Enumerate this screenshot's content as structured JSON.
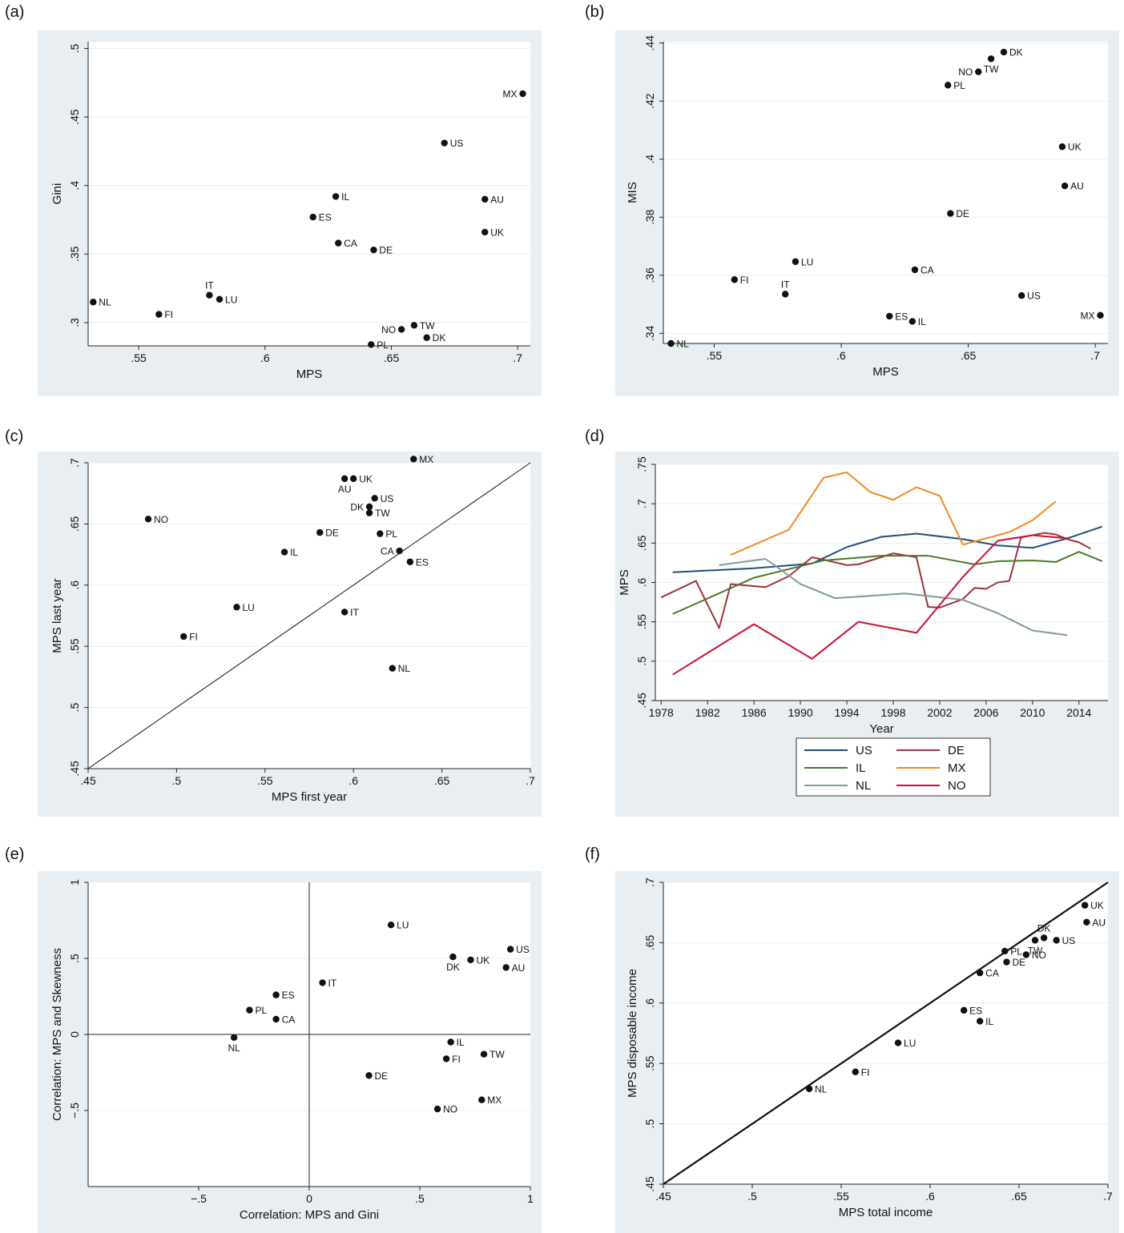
{
  "panel_tags": [
    "(a)",
    "(b)",
    "(c)",
    "(d)",
    "(e)",
    "(f)"
  ],
  "chart_data": [
    {
      "id": "a",
      "type": "scatter",
      "title": "",
      "xlabel": "MPS",
      "ylabel": "Gini",
      "xlim": [
        0.53,
        0.705
      ],
      "ylim": [
        0.283,
        0.505
      ],
      "xticks": [
        0.55,
        0.6,
        0.65,
        0.7
      ],
      "xticklabels": [
        ".55",
        ".6",
        ".65",
        ".7"
      ],
      "yticks": [
        0.3,
        0.35,
        0.4,
        0.45,
        0.5
      ],
      "yticklabels": [
        ".3",
        ".35",
        ".4",
        ".45",
        ".5"
      ],
      "grid": true,
      "points": [
        {
          "label": "NL",
          "x": 0.532,
          "y": 0.315
        },
        {
          "label": "FI",
          "x": 0.558,
          "y": 0.306
        },
        {
          "label": "IT",
          "x": 0.578,
          "y": 0.32,
          "pos": "above"
        },
        {
          "label": "LU",
          "x": 0.582,
          "y": 0.317
        },
        {
          "label": "ES",
          "x": 0.619,
          "y": 0.377
        },
        {
          "label": "IL",
          "x": 0.628,
          "y": 0.392
        },
        {
          "label": "CA",
          "x": 0.629,
          "y": 0.358
        },
        {
          "label": "DE",
          "x": 0.643,
          "y": 0.353
        },
        {
          "label": "PL",
          "x": 0.642,
          "y": 0.284
        },
        {
          "label": "NO",
          "x": 0.654,
          "y": 0.295,
          "pos": "left"
        },
        {
          "label": "TW",
          "x": 0.659,
          "y": 0.298
        },
        {
          "label": "DK",
          "x": 0.664,
          "y": 0.289
        },
        {
          "label": "US",
          "x": 0.671,
          "y": 0.431
        },
        {
          "label": "AU",
          "x": 0.687,
          "y": 0.39
        },
        {
          "label": "UK",
          "x": 0.687,
          "y": 0.366
        },
        {
          "label": "MX",
          "x": 0.702,
          "y": 0.467,
          "pos": "left"
        }
      ]
    },
    {
      "id": "b",
      "type": "scatter",
      "title": "",
      "xlabel": "MPS",
      "ylabel": "MIS",
      "xlim": [
        0.53,
        0.705
      ],
      "ylim": [
        0.3365,
        0.4405
      ],
      "xticks": [
        0.55,
        0.6,
        0.65,
        0.7
      ],
      "xticklabels": [
        ".55",
        ".6",
        ".65",
        ".7"
      ],
      "yticks": [
        0.34,
        0.36,
        0.38,
        0.4,
        0.42,
        0.44
      ],
      "yticklabels": [
        ".34",
        ".36",
        ".38",
        ".4",
        ".42",
        ".44"
      ],
      "grid": true,
      "points": [
        {
          "label": "NL",
          "x": 0.533,
          "y": 0.3365
        },
        {
          "label": "FI",
          "x": 0.558,
          "y": 0.3585
        },
        {
          "label": "IT",
          "x": 0.578,
          "y": 0.3535,
          "pos": "above"
        },
        {
          "label": "LU",
          "x": 0.582,
          "y": 0.3647
        },
        {
          "label": "ES",
          "x": 0.619,
          "y": 0.3459
        },
        {
          "label": "IL",
          "x": 0.628,
          "y": 0.3441
        },
        {
          "label": "CA",
          "x": 0.629,
          "y": 0.3619
        },
        {
          "label": "DE",
          "x": 0.643,
          "y": 0.3813
        },
        {
          "label": "PL",
          "x": 0.642,
          "y": 0.4255
        },
        {
          "label": "NO",
          "x": 0.654,
          "y": 0.4301,
          "pos": "left"
        },
        {
          "label": "TW",
          "x": 0.659,
          "y": 0.4346,
          "pos": "below"
        },
        {
          "label": "DK",
          "x": 0.664,
          "y": 0.4369
        },
        {
          "label": "US",
          "x": 0.671,
          "y": 0.353
        },
        {
          "label": "UK",
          "x": 0.687,
          "y": 0.4043
        },
        {
          "label": "AU",
          "x": 0.688,
          "y": 0.3908
        },
        {
          "label": "MX",
          "x": 0.702,
          "y": 0.3462,
          "pos": "left"
        }
      ]
    },
    {
      "id": "c",
      "type": "scatter",
      "title": "",
      "xlabel": "MPS first year",
      "ylabel": "MPS last year",
      "xlim": [
        0.45,
        0.7
      ],
      "ylim": [
        0.45,
        0.7
      ],
      "xticks": [
        0.45,
        0.5,
        0.55,
        0.6,
        0.65,
        0.7
      ],
      "xticklabels": [
        ".45",
        ".5",
        ".55",
        ".6",
        ".65",
        ".7"
      ],
      "yticks": [
        0.45,
        0.5,
        0.55,
        0.6,
        0.65,
        0.7
      ],
      "yticklabels": [
        ".45",
        ".5",
        ".55",
        ".6",
        ".65",
        ".7"
      ],
      "grid": true,
      "reference_line": {
        "from": [
          0.45,
          0.45
        ],
        "to": [
          0.7,
          0.7
        ]
      },
      "points": [
        {
          "label": "NO",
          "x": 0.484,
          "y": 0.654
        },
        {
          "label": "FI",
          "x": 0.504,
          "y": 0.558
        },
        {
          "label": "LU",
          "x": 0.534,
          "y": 0.582
        },
        {
          "label": "IL",
          "x": 0.561,
          "y": 0.627
        },
        {
          "label": "DE",
          "x": 0.581,
          "y": 0.643
        },
        {
          "label": "AU",
          "x": 0.595,
          "y": 0.687,
          "pos": "below"
        },
        {
          "label": "UK",
          "x": 0.6,
          "y": 0.687
        },
        {
          "label": "IT",
          "x": 0.595,
          "y": 0.578
        },
        {
          "label": "DK",
          "x": 0.609,
          "y": 0.664,
          "pos": "left"
        },
        {
          "label": "US",
          "x": 0.612,
          "y": 0.671
        },
        {
          "label": "TW",
          "x": 0.609,
          "y": 0.659
        },
        {
          "label": "PL",
          "x": 0.615,
          "y": 0.642
        },
        {
          "label": "NL",
          "x": 0.622,
          "y": 0.532
        },
        {
          "label": "CA",
          "x": 0.626,
          "y": 0.628,
          "pos": "left"
        },
        {
          "label": "ES",
          "x": 0.632,
          "y": 0.619
        },
        {
          "label": "MX",
          "x": 0.634,
          "y": 0.703
        }
      ]
    },
    {
      "id": "d",
      "type": "line",
      "title": "",
      "xlabel": "Year",
      "ylabel": "MPS",
      "xlim": [
        1977.5,
        2016.5
      ],
      "ylim": [
        0.45,
        0.75
      ],
      "xticks": [
        1978,
        1982,
        1986,
        1990,
        1994,
        1998,
        2002,
        2006,
        2010,
        2014
      ],
      "xticklabels": [
        "1978",
        "1982",
        "1986",
        "1990",
        "1994",
        "1998",
        "2002",
        "2006",
        "2010",
        "2014"
      ],
      "yticks": [
        0.45,
        0.5,
        0.55,
        0.6,
        0.65,
        0.7,
        0.75
      ],
      "yticklabels": [
        ".45",
        ".5",
        ".55",
        ".6",
        ".65",
        ".7",
        ".75"
      ],
      "grid": true,
      "series": [
        {
          "name": "US",
          "color": "#1f4e79",
          "x": [
            1979,
            1986,
            1991,
            1994,
            1997,
            2000,
            2004,
            2007,
            2010,
            2013,
            2016
          ],
          "y": [
            0.613,
            0.618,
            0.624,
            0.645,
            0.658,
            0.662,
            0.655,
            0.647,
            0.644,
            0.656,
            0.671
          ]
        },
        {
          "name": "DE",
          "color": "#a0323c",
          "x": [
            1978,
            1981,
            1983,
            1984,
            1987,
            1989,
            1991,
            1992,
            1994,
            1995,
            1998,
            2000,
            2001,
            2002,
            2004,
            2005,
            2006,
            2007,
            2008,
            2009,
            2010,
            2011,
            2012,
            2013,
            2014,
            2015
          ],
          "y": [
            0.581,
            0.602,
            0.542,
            0.598,
            0.594,
            0.608,
            0.632,
            0.629,
            0.622,
            0.623,
            0.637,
            0.632,
            0.569,
            0.568,
            0.579,
            0.593,
            0.592,
            0.6,
            0.602,
            0.657,
            0.66,
            0.663,
            0.661,
            0.655,
            0.651,
            0.643
          ]
        },
        {
          "name": "IL",
          "color": "#4a7a2b",
          "x": [
            1979,
            1986,
            1992,
            1997,
            2001,
            2005,
            2007,
            2010,
            2012,
            2014,
            2016
          ],
          "y": [
            0.56,
            0.606,
            0.628,
            0.634,
            0.634,
            0.623,
            0.627,
            0.628,
            0.626,
            0.639,
            0.627
          ]
        },
        {
          "name": "MX",
          "color": "#f08a1e",
          "x": [
            1984,
            1989,
            1992,
            1994,
            1996,
            1998,
            2000,
            2002,
            2004,
            2005,
            2008,
            2010,
            2012
          ],
          "y": [
            0.635,
            0.667,
            0.733,
            0.74,
            0.715,
            0.705,
            0.721,
            0.71,
            0.648,
            0.652,
            0.664,
            0.679,
            0.703
          ]
        },
        {
          "name": "NL",
          "color": "#7f9a99",
          "x": [
            1983,
            1987,
            1990,
            1993,
            1999,
            2004,
            2007,
            2010,
            2013
          ],
          "y": [
            0.622,
            0.63,
            0.598,
            0.58,
            0.586,
            0.578,
            0.561,
            0.539,
            0.533
          ]
        },
        {
          "name": "NO",
          "color": "#c8102e",
          "x": [
            1979,
            1986,
            1991,
            1995,
            2000,
            2004,
            2007,
            2010,
            2013
          ],
          "y": [
            0.483,
            0.547,
            0.503,
            0.55,
            0.536,
            0.607,
            0.653,
            0.66,
            0.656
          ]
        }
      ],
      "legend": {
        "placement": "bottom",
        "columns": 2,
        "order": [
          "US",
          "DE",
          "IL",
          "MX",
          "NL",
          "NO"
        ]
      }
    },
    {
      "id": "e",
      "type": "scatter",
      "title": "",
      "xlabel": "Correlation: MPS and Gini",
      "ylabel": "Correlation: MPS and Skewness",
      "xlim": [
        -1,
        1
      ],
      "ylim": [
        -1,
        1
      ],
      "xticks": [
        -0.5,
        0,
        0.5,
        1
      ],
      "xticklabels": [
        "−.5",
        "0",
        ".5",
        "1"
      ],
      "yticks": [
        -0.5,
        0,
        0.5,
        1
      ],
      "yticklabels": [
        "−.5",
        "0",
        ".5",
        "1"
      ],
      "grid": true,
      "zero_lines": true,
      "points": [
        {
          "label": "LU",
          "x": 0.37,
          "y": 0.72
        },
        {
          "label": "DK",
          "x": 0.65,
          "y": 0.51,
          "pos": "below"
        },
        {
          "label": "UK",
          "x": 0.73,
          "y": 0.49
        },
        {
          "label": "US",
          "x": 0.91,
          "y": 0.56
        },
        {
          "label": "AU",
          "x": 0.89,
          "y": 0.44
        },
        {
          "label": "IT",
          "x": 0.06,
          "y": 0.34
        },
        {
          "label": "ES",
          "x": -0.15,
          "y": 0.26
        },
        {
          "label": "PL",
          "x": -0.27,
          "y": 0.16
        },
        {
          "label": "CA",
          "x": -0.15,
          "y": 0.1
        },
        {
          "label": "NL",
          "x": -0.34,
          "y": -0.02,
          "pos": "below"
        },
        {
          "label": "IL",
          "x": 0.64,
          "y": -0.05
        },
        {
          "label": "FI",
          "x": 0.62,
          "y": -0.16
        },
        {
          "label": "TW",
          "x": 0.79,
          "y": -0.13
        },
        {
          "label": "DE",
          "x": 0.27,
          "y": -0.27
        },
        {
          "label": "MX",
          "x": 0.78,
          "y": -0.43
        },
        {
          "label": "NO",
          "x": 0.58,
          "y": -0.49
        }
      ]
    },
    {
      "id": "f",
      "type": "scatter",
      "title": "",
      "xlabel": "MPS total income",
      "ylabel": "MPS disposable income",
      "xlim": [
        0.45,
        0.7
      ],
      "ylim": [
        0.45,
        0.7
      ],
      "xticks": [
        0.45,
        0.5,
        0.55,
        0.6,
        0.65,
        0.7
      ],
      "xticklabels": [
        ".45",
        ".5",
        ".55",
        ".6",
        ".65",
        ".7"
      ],
      "yticks": [
        0.45,
        0.5,
        0.55,
        0.6,
        0.65,
        0.7
      ],
      "yticklabels": [
        ".45",
        ".5",
        ".55",
        ".6",
        ".65",
        ".7"
      ],
      "grid": true,
      "reference_line": {
        "from": [
          0.45,
          0.45
        ],
        "to": [
          0.7,
          0.7
        ],
        "thick": true
      },
      "points": [
        {
          "label": "NL",
          "x": 0.532,
          "y": 0.529
        },
        {
          "label": "FI",
          "x": 0.558,
          "y": 0.543
        },
        {
          "label": "LU",
          "x": 0.582,
          "y": 0.567
        },
        {
          "label": "ES",
          "x": 0.619,
          "y": 0.594
        },
        {
          "label": "IL",
          "x": 0.628,
          "y": 0.585
        },
        {
          "label": "CA",
          "x": 0.628,
          "y": 0.625
        },
        {
          "label": "PL",
          "x": 0.642,
          "y": 0.643
        },
        {
          "label": "DE",
          "x": 0.643,
          "y": 0.634
        },
        {
          "label": "NO",
          "x": 0.654,
          "y": 0.64
        },
        {
          "label": "TW",
          "x": 0.659,
          "y": 0.652,
          "pos": "below"
        },
        {
          "label": "DK",
          "x": 0.664,
          "y": 0.654,
          "pos": "above"
        },
        {
          "label": "US",
          "x": 0.671,
          "y": 0.652
        },
        {
          "label": "UK",
          "x": 0.687,
          "y": 0.681
        },
        {
          "label": "AU",
          "x": 0.688,
          "y": 0.667
        }
      ]
    }
  ]
}
